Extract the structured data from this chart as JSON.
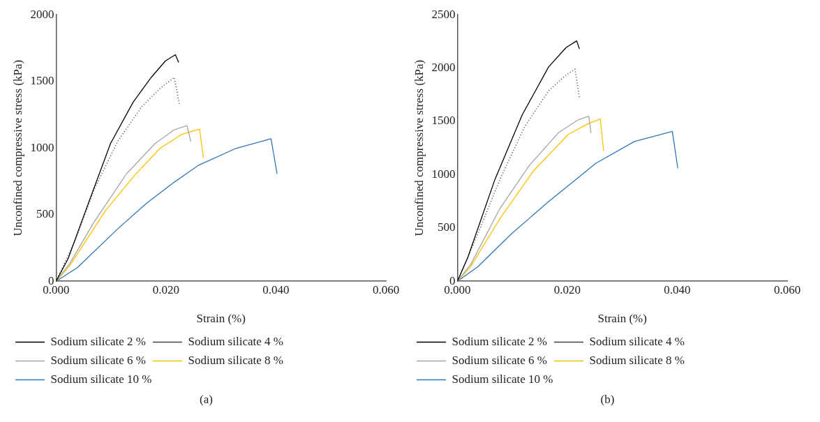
{
  "chart_data": [
    {
      "type": "line",
      "xlabel": "Strain (%)",
      "ylabel": "Unconfined compressive stress (kPa)",
      "xlim": [
        0,
        0.06
      ],
      "xticks": [
        {
          "value": 0,
          "label": "0.000"
        },
        {
          "value": 0.02,
          "label": "0.020"
        },
        {
          "value": 0.04,
          "label": "0.040"
        },
        {
          "value": 0.06,
          "label": "0.060"
        }
      ],
      "ylim": [
        0,
        2000
      ],
      "yticks": [
        0,
        500,
        1000,
        1500,
        2000
      ],
      "grid": false,
      "legend": "bottom",
      "marker": "none",
      "annotations": [
        "(a)"
      ],
      "series": [
        {
          "name": "Sodium silicate 2 %",
          "color": "#000000",
          "line_style": "solid",
          "x": [
            0,
            0.0022,
            0.006,
            0.0099,
            0.014,
            0.0173,
            0.0199,
            0.0217,
            0.0223
          ],
          "values": [
            0,
            171,
            600,
            1034,
            1343,
            1530,
            1654,
            1700,
            1643
          ]
        },
        {
          "name": "Sodium silicate 4 %",
          "color": "#404040",
          "line_style": "dotted",
          "x": [
            0,
            0.0035,
            0.0069,
            0.0112,
            0.0155,
            0.0189,
            0.0215,
            0.0224
          ],
          "values": [
            0,
            310,
            687,
            1049,
            1307,
            1447,
            1530,
            1333
          ]
        },
        {
          "name": "Sodium silicate 6 %",
          "color": "#a5a5a5",
          "line_style": "solid",
          "x": [
            0,
            0.0025,
            0.0069,
            0.0128,
            0.018,
            0.0215,
            0.0238,
            0.0245
          ],
          "values": [
            0,
            134,
            444,
            806,
            1034,
            1137,
            1168,
            1049
          ]
        },
        {
          "name": "Sodium silicate 8 %",
          "color": "#ffc000",
          "line_style": "solid",
          "x": [
            0,
            0.0025,
            0.009,
            0.0142,
            0.0189,
            0.0228,
            0.0261,
            0.0268
          ],
          "values": [
            0,
            118,
            532,
            791,
            997,
            1101,
            1142,
            925
          ]
        },
        {
          "name": "Sodium silicate 10 %",
          "color": "#2e75b6",
          "line_style": "solid",
          "x": [
            0,
            0.0039,
            0.0112,
            0.0164,
            0.0215,
            0.0258,
            0.0327,
            0.0391,
            0.0402
          ],
          "values": [
            0,
            103,
            393,
            584,
            744,
            868,
            997,
            1070,
            806
          ]
        }
      ]
    },
    {
      "type": "line",
      "xlabel": "Strain (%)",
      "ylabel": "Unconfined compressive stress (kPa)",
      "xlim": [
        0,
        0.06
      ],
      "xticks": [
        {
          "value": 0,
          "label": "0.000"
        },
        {
          "value": 0.02,
          "label": "0.020"
        },
        {
          "value": 0.04,
          "label": "0.040"
        },
        {
          "value": 0.06,
          "label": "0.060"
        }
      ],
      "ylim": [
        0,
        2500
      ],
      "yticks": [
        0,
        500,
        1000,
        1500,
        2000,
        2500
      ],
      "grid": false,
      "legend": "bottom",
      "marker": "none",
      "annotations": [
        "(b)"
      ],
      "series": [
        {
          "name": "Sodium silicate 2 %",
          "color": "#000000",
          "line_style": "solid",
          "x": [
            0,
            0.0019,
            0.0068,
            0.0118,
            0.0166,
            0.0198,
            0.0217,
            0.0222
          ],
          "values": [
            0,
            224,
            951,
            1562,
            2011,
            2194,
            2255,
            2180
          ]
        },
        {
          "name": "Sodium silicate 4 %",
          "color": "#404040",
          "line_style": "dotted",
          "x": [
            0,
            0.0032,
            0.0077,
            0.0122,
            0.0166,
            0.0198,
            0.0214,
            0.0222
          ],
          "values": [
            0,
            380,
            951,
            1447,
            1787,
            1936,
            1990,
            1719
          ]
        },
        {
          "name": "Sodium silicate 6 %",
          "color": "#a5a5a5",
          "line_style": "solid",
          "x": [
            0,
            0.0024,
            0.0077,
            0.0131,
            0.0185,
            0.022,
            0.0239,
            0.0243
          ],
          "values": [
            0,
            156,
            679,
            1087,
            1399,
            1515,
            1549,
            1393
          ]
        },
        {
          "name": "Sodium silicate 8 %",
          "color": "#ffc000",
          "line_style": "solid",
          "x": [
            0,
            0.0024,
            0.0077,
            0.0139,
            0.0202,
            0.0239,
            0.026,
            0.0266
          ],
          "values": [
            0,
            136,
            584,
            1039,
            1379,
            1481,
            1522,
            1223
          ]
        },
        {
          "name": "Sodium silicate 10 %",
          "color": "#2e75b6",
          "line_style": "solid",
          "x": [
            0,
            0.0037,
            0.0099,
            0.0166,
            0.0252,
            0.0322,
            0.0391,
            0.0401
          ],
          "values": [
            0,
            136,
            448,
            747,
            1107,
            1311,
            1406,
            1060
          ]
        }
      ]
    }
  ]
}
